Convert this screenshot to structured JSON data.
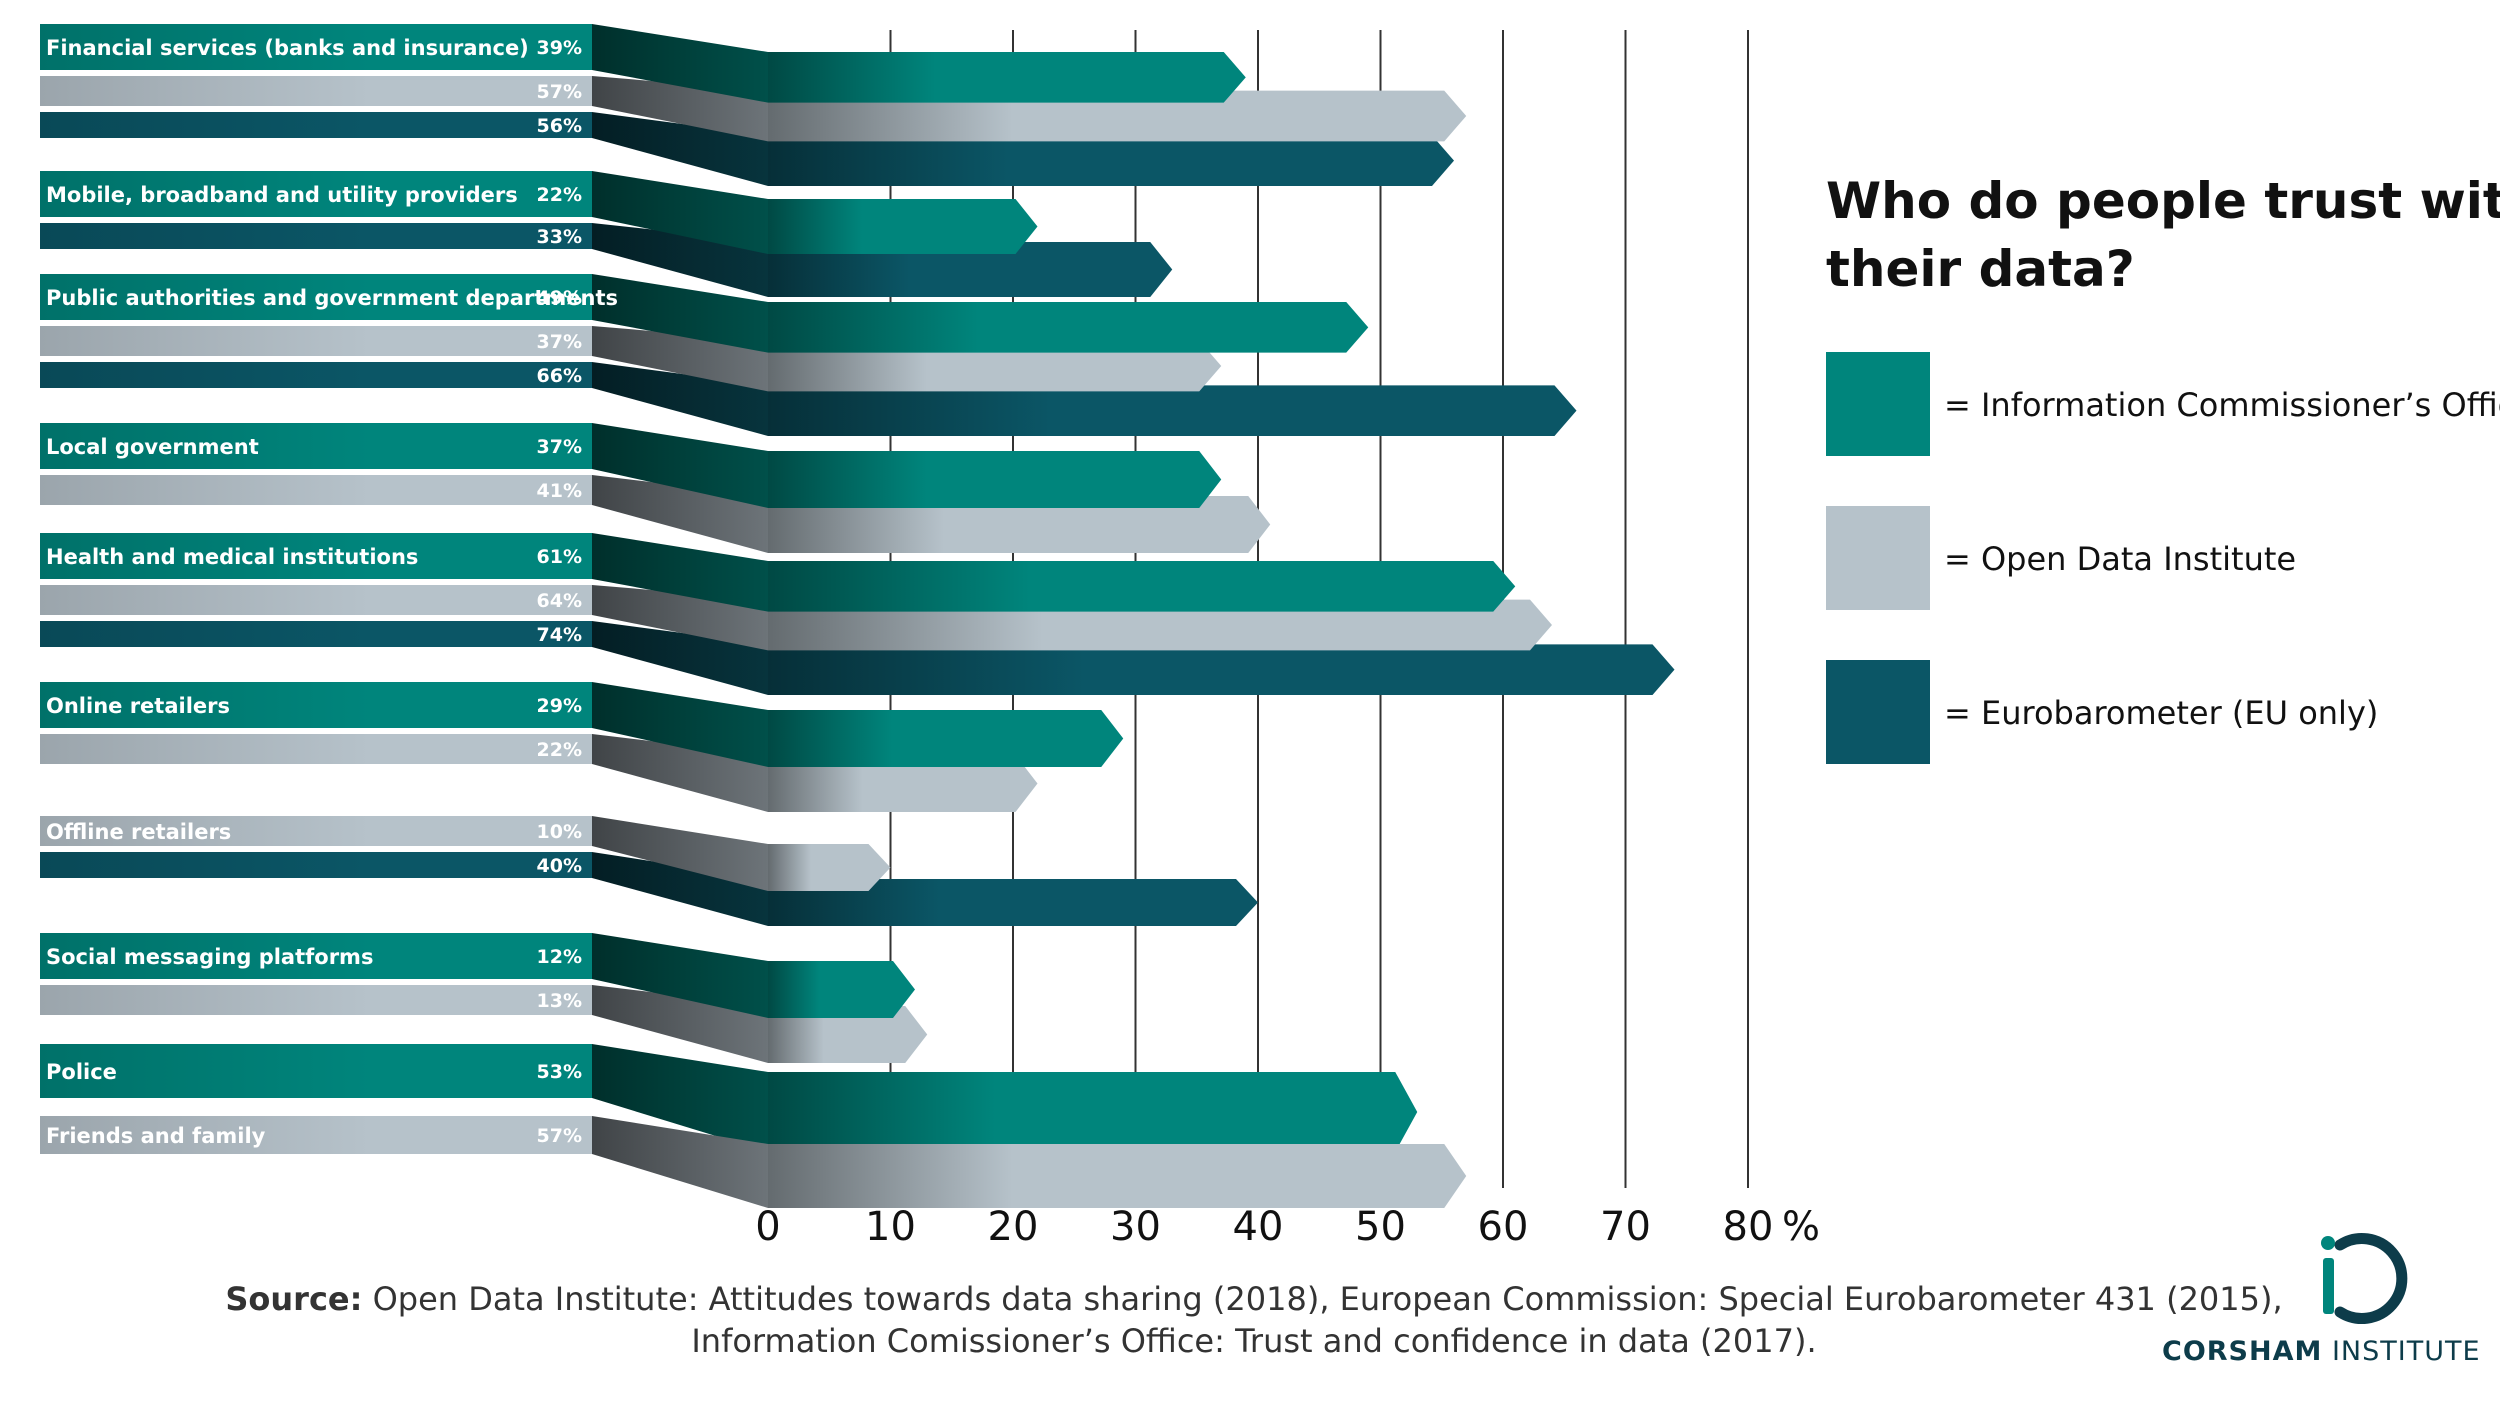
{
  "title": "Who do people trust with their data?",
  "colors": {
    "ico": "#00857c",
    "odi": "#b6c2ca",
    "euro": "#0b5666",
    "axis": "#222222",
    "text_dark": "#111111"
  },
  "legend": [
    {
      "key": "ico",
      "label": "= Information Commissioner’s Office"
    },
    {
      "key": "odi",
      "label": "= Open Data Institute"
    },
    {
      "key": "euro",
      "label": "= Eurobarometer (EU only)"
    }
  ],
  "source": {
    "prefix": "Source:",
    "line1": "Open Data Institute: Attitudes towards data sharing (2018), European Commission: Special Eurobarometer 431 (2015),",
    "line2": "Information Comissioner’s Office: Trust and confidence in data (2017)."
  },
  "logo": {
    "word1": "CORSHAM",
    "word2": "INSTITUTE",
    "icon": "ci-monogram-icon"
  },
  "chart_data": {
    "type": "bar",
    "orientation": "horizontal",
    "title": "Who do people trust with their data?",
    "xlabel": "%",
    "xlim": [
      0,
      80
    ],
    "xticks": [
      0,
      10,
      20,
      30,
      40,
      50,
      60,
      70,
      80
    ],
    "tick_labels": [
      "0",
      "10",
      "20",
      "30",
      "40",
      "50",
      "60",
      "70",
      "80"
    ],
    "unit_label": "%",
    "grid": true,
    "legend_position": "right",
    "series_keys": [
      "ico",
      "odi",
      "euro"
    ],
    "categories": [
      {
        "label": "Financial services (banks and insurance)",
        "values": [
          {
            "series": "ico",
            "value": 39,
            "label": "39%"
          },
          {
            "series": "odi",
            "value": 57,
            "label": "57%"
          },
          {
            "series": "euro",
            "value": 56,
            "label": "56%"
          }
        ]
      },
      {
        "label": "Mobile, broadband and utility providers",
        "values": [
          {
            "series": "ico",
            "value": 22,
            "label": "22%"
          },
          {
            "series": "euro",
            "value": 33,
            "label": "33%"
          }
        ]
      },
      {
        "label": "Public authorities and government departments",
        "values": [
          {
            "series": "ico",
            "value": 49,
            "label": "49%"
          },
          {
            "series": "odi",
            "value": 37,
            "label": "37%"
          },
          {
            "series": "euro",
            "value": 66,
            "label": "66%"
          }
        ]
      },
      {
        "label": "Local government",
        "values": [
          {
            "series": "ico",
            "value": 37,
            "label": "37%"
          },
          {
            "series": "odi",
            "value": 41,
            "label": "41%"
          }
        ]
      },
      {
        "label": "Health and medical institutions",
        "values": [
          {
            "series": "ico",
            "value": 61,
            "label": "61%"
          },
          {
            "series": "odi",
            "value": 64,
            "label": "64%"
          },
          {
            "series": "euro",
            "value": 74,
            "label": "74%"
          }
        ]
      },
      {
        "label": "Online retailers",
        "values": [
          {
            "series": "ico",
            "value": 29,
            "label": "29%"
          },
          {
            "series": "odi",
            "value": 22,
            "label": "22%"
          }
        ]
      },
      {
        "label": "Offline retailers",
        "values": [
          {
            "series": "odi",
            "value": 10,
            "label": "10%"
          },
          {
            "series": "euro",
            "value": 40,
            "label": "40%"
          }
        ]
      },
      {
        "label": "Social messaging platforms",
        "values": [
          {
            "series": "ico",
            "value": 12,
            "label": "12%"
          },
          {
            "series": "odi",
            "value": 13,
            "label": "13%"
          }
        ]
      },
      {
        "label": "Police",
        "values": [
          {
            "series": "ico",
            "value": 53,
            "label": "53%"
          }
        ]
      },
      {
        "label": "Friends and family",
        "values": [
          {
            "series": "odi",
            "value": 57,
            "label": "57%"
          }
        ]
      }
    ]
  }
}
